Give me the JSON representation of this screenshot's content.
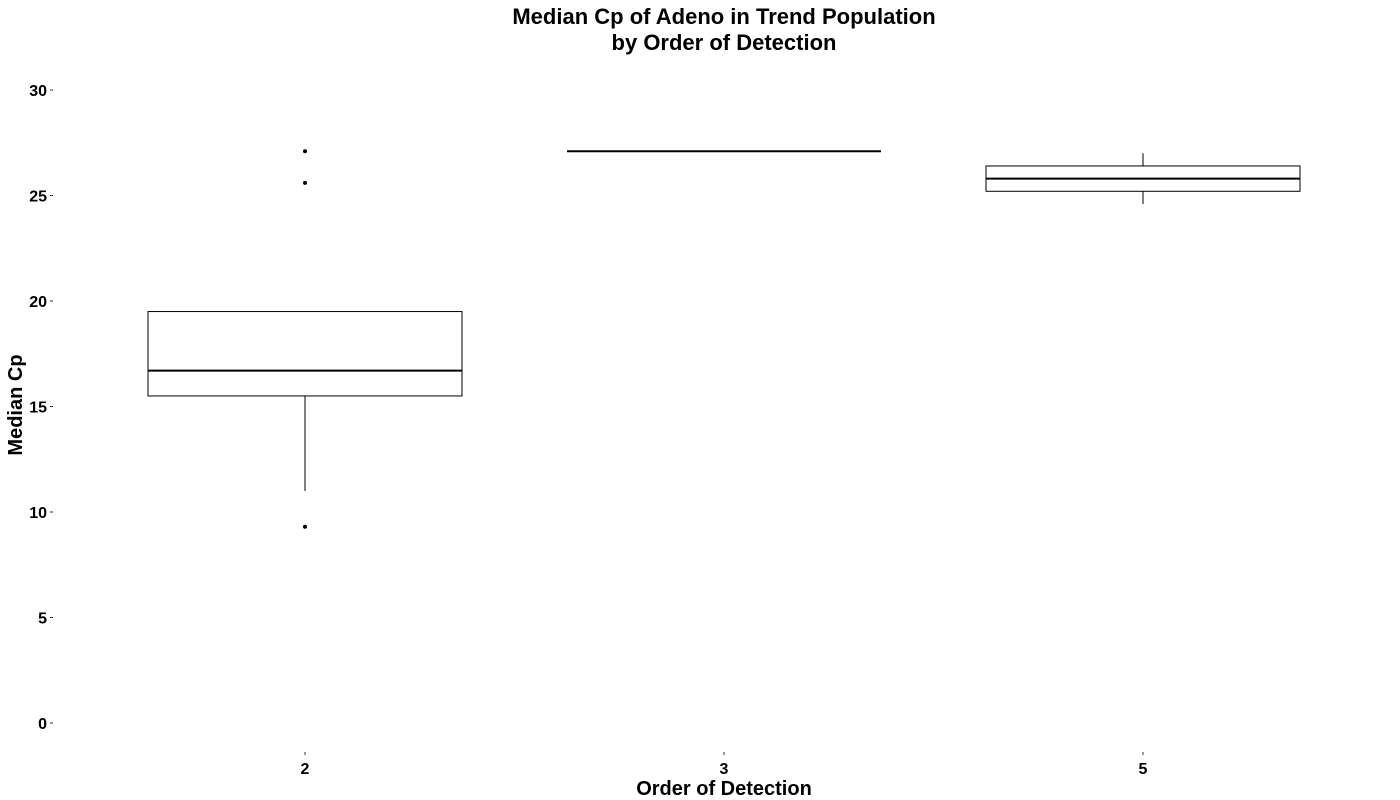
{
  "chart_data": {
    "type": "boxplot",
    "title": "Median Cp of Adeno in Trend Population\nby Order of Detection",
    "xlabel": "Order of Detection",
    "ylabel": "Median Cp",
    "ylim": [
      0,
      30
    ],
    "yticks": [
      0,
      5,
      10,
      15,
      20,
      25,
      30
    ],
    "grid": false,
    "legend": "none",
    "categories": [
      "2",
      "3",
      "5"
    ],
    "boxes": [
      {
        "category": "2",
        "whisker_low": 11.0,
        "q1": 15.5,
        "median": 16.7,
        "q3": 19.5,
        "whisker_high": 19.5,
        "outliers": [
          27.1,
          25.6,
          9.3
        ]
      },
      {
        "category": "3",
        "whisker_low": 27.1,
        "q1": 27.1,
        "median": 27.1,
        "q3": 27.1,
        "whisker_high": 27.1,
        "outliers": []
      },
      {
        "category": "5",
        "whisker_low": 24.6,
        "q1": 25.2,
        "median": 25.8,
        "q3": 26.4,
        "whisker_high": 27.0,
        "outliers": []
      }
    ],
    "colors": {
      "box_stroke": "#000000",
      "box_fill": "#ffffff",
      "text": "#000000"
    }
  }
}
